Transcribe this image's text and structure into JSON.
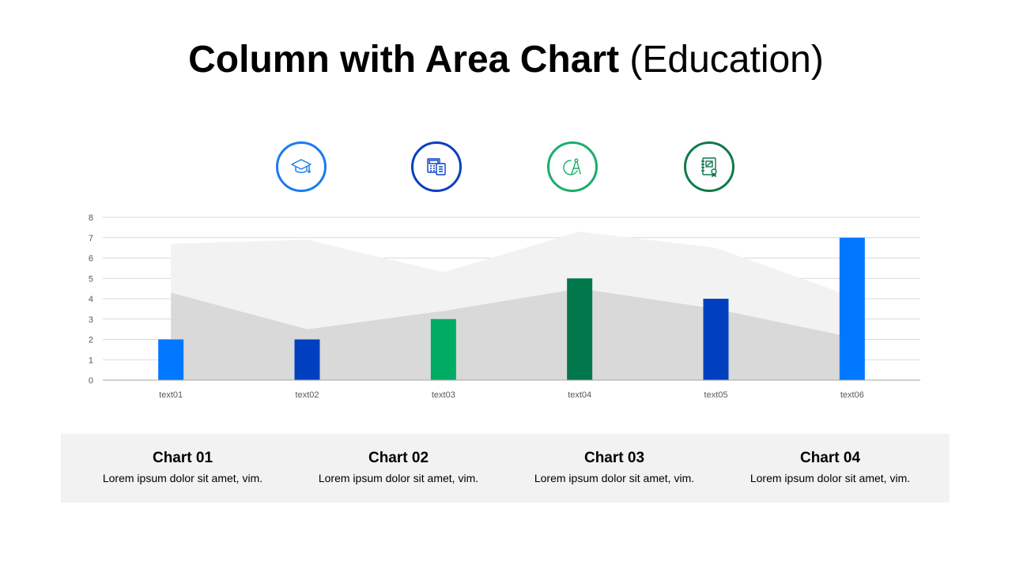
{
  "title": {
    "bold": "Column with Area Chart",
    "light": "(Education)"
  },
  "icons": [
    {
      "name": "graduation-cap-icon",
      "color": "#1a7bf0"
    },
    {
      "name": "calculator-icon",
      "color": "#0a3fbf"
    },
    {
      "name": "compass-icon",
      "color": "#1aae6a"
    },
    {
      "name": "certificate-book-icon",
      "color": "#0f7a4a"
    }
  ],
  "chart_data": {
    "type": "bar",
    "categories": [
      "text01",
      "text02",
      "text03",
      "text04",
      "text05",
      "text06"
    ],
    "series": [
      {
        "values": [
          2,
          2,
          3,
          5,
          4,
          7
        ],
        "chart_type": "bar",
        "colors": [
          "#0077ff",
          "#0040c0",
          "#00ab63",
          "#00774a",
          "#0040c0",
          "#0077ff"
        ]
      },
      {
        "values": [
          4.3,
          2.5,
          3.4,
          4.5,
          3.5,
          2.1
        ],
        "chart_type": "area",
        "color": "#d9d9d9"
      },
      {
        "values": [
          2.4,
          4.4,
          1.9,
          2.8,
          3.0,
          2.0
        ],
        "chart_type": "stacked-area",
        "color": "#f2f2f2"
      }
    ],
    "yticks": [
      "0",
      "1",
      "2",
      "3",
      "4",
      "5",
      "6",
      "7",
      "8"
    ],
    "ylim": [
      0,
      8
    ],
    "grid": true,
    "legend": "none"
  },
  "cards": [
    {
      "title": "Chart 01",
      "desc": "Lorem ipsum dolor sit amet, vim."
    },
    {
      "title": "Chart 02",
      "desc": "Lorem ipsum dolor sit amet, vim."
    },
    {
      "title": "Chart 03",
      "desc": "Lorem ipsum dolor sit amet, vim."
    },
    {
      "title": "Chart 04",
      "desc": "Lorem ipsum dolor sit amet, vim."
    }
  ]
}
